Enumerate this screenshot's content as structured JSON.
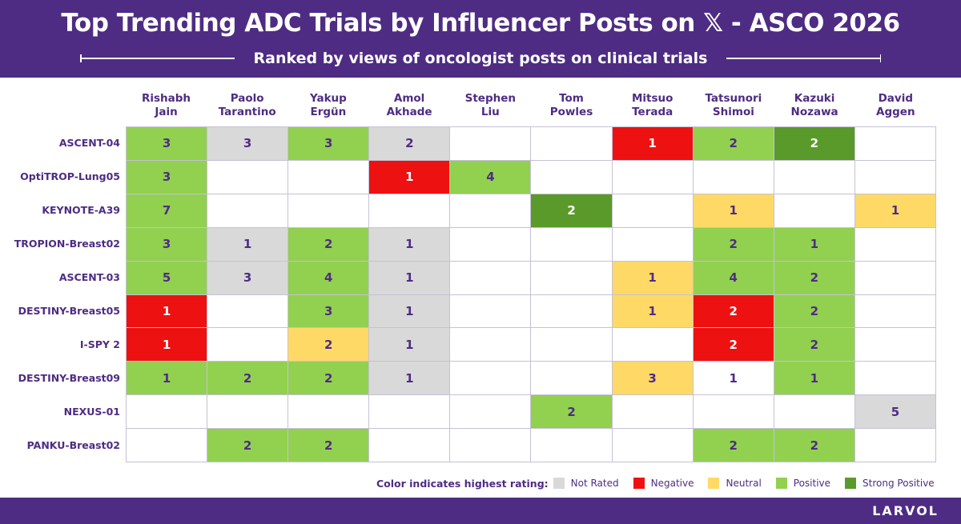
{
  "title": "Top Trending ADC Trials by Influencer Posts on 𝕏 - ASCO 2026",
  "subtitle": "Ranked by views of oncologist posts on clinical trials",
  "brand": "LARVOL",
  "legend": {
    "title": "Color indicates highest rating:",
    "items": [
      {
        "key": "notrated",
        "label": "Not Rated",
        "color": "#d9d9d9"
      },
      {
        "key": "negative",
        "label": "Negative",
        "color": "#ee1111"
      },
      {
        "key": "neutral",
        "label": "Neutral",
        "color": "#fed966"
      },
      {
        "key": "positive",
        "label": "Positive",
        "color": "#92d050"
      },
      {
        "key": "strong",
        "label": "Strong Positive",
        "color": "#5a9a2a"
      }
    ]
  },
  "columns": [
    {
      "line1": "Rishabh",
      "line2": "Jain"
    },
    {
      "line1": "Paolo",
      "line2": "Tarantino"
    },
    {
      "line1": "Yakup",
      "line2": "Ergün"
    },
    {
      "line1": "Amol",
      "line2": "Akhade"
    },
    {
      "line1": "Stephen",
      "line2": "Liu"
    },
    {
      "line1": "Tom",
      "line2": "Powles"
    },
    {
      "line1": "Mitsuo",
      "line2": "Terada"
    },
    {
      "line1": "Tatsunori",
      "line2": "Shimoi"
    },
    {
      "line1": "Kazuki",
      "line2": "Nozawa"
    },
    {
      "line1": "David",
      "line2": "Aggen"
    }
  ],
  "rows": [
    "ASCENT-04",
    "OptiTROP-Lung05",
    "KEYNOTE-A39",
    "TROPION-Breast02",
    "ASCENT-03",
    "DESTINY-Breast05",
    "I-SPY 2",
    "DESTINY-Breast09",
    "NEXUS-01",
    "PANKU-Breast02"
  ],
  "chart_data": {
    "type": "heatmap",
    "title": "Top Trending ADC Trials by Influencer Posts on 𝕏 - ASCO 2026",
    "subtitle": "Ranked by views of oncologist posts on clinical trials",
    "x_categories": [
      "Rishabh Jain",
      "Paolo Tarantino",
      "Yakup Ergün",
      "Amol Akhade",
      "Stephen Liu",
      "Tom Powles",
      "Mitsuo Terada",
      "Tatsunori Shimoi",
      "Kazuki Nozawa",
      "David Aggen"
    ],
    "y_categories": [
      "ASCENT-04",
      "OptiTROP-Lung05",
      "KEYNOTE-A39",
      "TROPION-Breast02",
      "ASCENT-03",
      "DESTINY-Breast05",
      "I-SPY 2",
      "DESTINY-Breast09",
      "NEXUS-01",
      "PANKU-Breast02"
    ],
    "cells": [
      [
        {
          "v": "3",
          "r": "positive"
        },
        {
          "v": "3",
          "r": "notrated"
        },
        {
          "v": "3",
          "r": "positive"
        },
        {
          "v": "2",
          "r": "notrated"
        },
        {
          "v": "",
          "r": ""
        },
        {
          "v": "",
          "r": ""
        },
        {
          "v": "1",
          "r": "negative"
        },
        {
          "v": "2",
          "r": "positive"
        },
        {
          "v": "2",
          "r": "strong"
        },
        {
          "v": "",
          "r": ""
        }
      ],
      [
        {
          "v": "3",
          "r": "positive"
        },
        {
          "v": "",
          "r": ""
        },
        {
          "v": "",
          "r": ""
        },
        {
          "v": "1",
          "r": "negative"
        },
        {
          "v": "4",
          "r": "positive"
        },
        {
          "v": "",
          "r": ""
        },
        {
          "v": "",
          "r": ""
        },
        {
          "v": "",
          "r": ""
        },
        {
          "v": "",
          "r": ""
        },
        {
          "v": "",
          "r": ""
        }
      ],
      [
        {
          "v": "7",
          "r": "positive"
        },
        {
          "v": "",
          "r": ""
        },
        {
          "v": "",
          "r": ""
        },
        {
          "v": "",
          "r": ""
        },
        {
          "v": "",
          "r": ""
        },
        {
          "v": "2",
          "r": "strong"
        },
        {
          "v": "",
          "r": ""
        },
        {
          "v": "1",
          "r": "neutral"
        },
        {
          "v": "",
          "r": ""
        },
        {
          "v": "1",
          "r": "neutral"
        }
      ],
      [
        {
          "v": "3",
          "r": "positive"
        },
        {
          "v": "1",
          "r": "notrated"
        },
        {
          "v": "2",
          "r": "positive"
        },
        {
          "v": "1",
          "r": "notrated"
        },
        {
          "v": "",
          "r": ""
        },
        {
          "v": "",
          "r": ""
        },
        {
          "v": "",
          "r": ""
        },
        {
          "v": "2",
          "r": "positive"
        },
        {
          "v": "1",
          "r": "positive"
        },
        {
          "v": "",
          "r": ""
        }
      ],
      [
        {
          "v": "5",
          "r": "positive"
        },
        {
          "v": "3",
          "r": "notrated"
        },
        {
          "v": "4",
          "r": "positive"
        },
        {
          "v": "1",
          "r": "notrated"
        },
        {
          "v": "",
          "r": ""
        },
        {
          "v": "",
          "r": ""
        },
        {
          "v": "1",
          "r": "neutral"
        },
        {
          "v": "4",
          "r": "positive"
        },
        {
          "v": "2",
          "r": "positive"
        },
        {
          "v": "",
          "r": ""
        }
      ],
      [
        {
          "v": "1",
          "r": "negative"
        },
        {
          "v": "",
          "r": ""
        },
        {
          "v": "3",
          "r": "positive"
        },
        {
          "v": "1",
          "r": "notrated"
        },
        {
          "v": "",
          "r": ""
        },
        {
          "v": "",
          "r": ""
        },
        {
          "v": "1",
          "r": "neutral"
        },
        {
          "v": "2",
          "r": "negative"
        },
        {
          "v": "2",
          "r": "positive"
        },
        {
          "v": "",
          "r": ""
        }
      ],
      [
        {
          "v": "1",
          "r": "negative"
        },
        {
          "v": "",
          "r": ""
        },
        {
          "v": "2",
          "r": "neutral"
        },
        {
          "v": "1",
          "r": "notrated"
        },
        {
          "v": "",
          "r": ""
        },
        {
          "v": "",
          "r": ""
        },
        {
          "v": "",
          "r": ""
        },
        {
          "v": "2",
          "r": "negative"
        },
        {
          "v": "2",
          "r": "positive"
        },
        {
          "v": "",
          "r": ""
        }
      ],
      [
        {
          "v": "1",
          "r": "positive"
        },
        {
          "v": "2",
          "r": "positive"
        },
        {
          "v": "2",
          "r": "positive"
        },
        {
          "v": "1",
          "r": "notrated"
        },
        {
          "v": "",
          "r": ""
        },
        {
          "v": "",
          "r": ""
        },
        {
          "v": "3",
          "r": "neutral"
        },
        {
          "v": "1",
          "r": ""
        },
        {
          "v": "1",
          "r": "positive"
        },
        {
          "v": "",
          "r": ""
        }
      ],
      [
        {
          "v": "",
          "r": ""
        },
        {
          "v": "",
          "r": ""
        },
        {
          "v": "",
          "r": ""
        },
        {
          "v": "",
          "r": ""
        },
        {
          "v": "",
          "r": ""
        },
        {
          "v": "2",
          "r": "positive"
        },
        {
          "v": "",
          "r": ""
        },
        {
          "v": "",
          "r": ""
        },
        {
          "v": "",
          "r": ""
        },
        {
          "v": "5",
          "r": "notrated"
        }
      ],
      [
        {
          "v": "",
          "r": ""
        },
        {
          "v": "2",
          "r": "positive"
        },
        {
          "v": "2",
          "r": "positive"
        },
        {
          "v": "",
          "r": ""
        },
        {
          "v": "",
          "r": ""
        },
        {
          "v": "",
          "r": ""
        },
        {
          "v": "",
          "r": ""
        },
        {
          "v": "2",
          "r": "positive"
        },
        {
          "v": "2",
          "r": "positive"
        },
        {
          "v": "",
          "r": ""
        }
      ]
    ],
    "legend_placement": "bottom-right",
    "grid": true
  }
}
